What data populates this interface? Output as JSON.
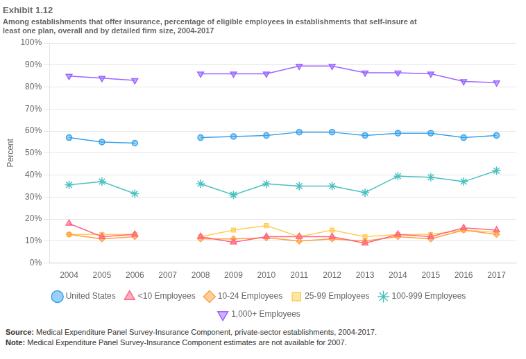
{
  "chart_data": {
    "type": "line",
    "title": "Exhibit 1.12",
    "subtitle": "Among establishments that offer insurance, percentage of eligible employees in establishments that self-insure at\nleast one plan, overall and by detailed firm size, 2004-2017",
    "y_label": "Percent",
    "annotations": [
      "Source: Medical Expenditure Panel Survey-Insurance Component, private-sector establishments, 2004-2017.",
      "Note: Medical Expenditure Panel Survey-Insurance Component estimates are not available for 2007."
    ],
    "x": [
      2004,
      2005,
      2006,
      2007,
      2008,
      2009,
      2010,
      2011,
      2012,
      2013,
      2014,
      2015,
      2016,
      2017
    ],
    "series": [
      {
        "name": "United States",
        "marker": "circle",
        "values": [
          57,
          55,
          54.5,
          null,
          57,
          57.5,
          58,
          59.5,
          59.5,
          58,
          59,
          59,
          57,
          58
        ]
      },
      {
        "name": "<10 Employees",
        "marker": "triangle-up",
        "values": [
          18,
          12,
          13,
          null,
          12,
          9.5,
          12,
          12,
          12,
          9,
          13,
          12,
          16,
          15
        ]
      },
      {
        "name": "10-24 Employees",
        "marker": "diamond",
        "values": [
          13,
          11,
          12,
          null,
          11,
          11,
          11.5,
          10,
          11,
          10,
          12,
          11,
          15,
          13
        ]
      },
      {
        "name": "25-99 Employees",
        "marker": "square",
        "values": [
          13,
          13,
          13,
          null,
          12,
          15,
          17,
          12,
          15,
          12,
          13,
          13,
          15,
          14
        ]
      },
      {
        "name": "100-999 Employees",
        "marker": "star",
        "values": [
          35.5,
          37,
          31.5,
          null,
          36,
          31,
          36,
          35,
          35,
          32,
          39.5,
          39,
          37,
          42
        ]
      },
      {
        "name": "1,000+ Employees",
        "marker": "triangle-down",
        "values": [
          85,
          84,
          83,
          null,
          86,
          86,
          86,
          89.5,
          89.5,
          86.5,
          86.5,
          86,
          82.5,
          82
        ]
      }
    ],
    "xlim": [
      2003.4,
      2017.6
    ],
    "xticks": [
      2004,
      2005,
      2006,
      2007,
      2008,
      2009,
      2010,
      2011,
      2012,
      2013,
      2014,
      2015,
      2016,
      2017
    ],
    "ylim": [
      0,
      100
    ],
    "yticks": [
      {
        "value": 0,
        "label": "0%"
      },
      {
        "value": 10,
        "label": "10%"
      },
      {
        "value": 20,
        "label": "20%"
      },
      {
        "value": 30,
        "label": "30%"
      },
      {
        "value": 40,
        "label": "40%"
      },
      {
        "value": 50,
        "label": "50%"
      },
      {
        "value": 60,
        "label": "60%"
      },
      {
        "value": 70,
        "label": "70%"
      },
      {
        "value": 80,
        "label": "80%"
      },
      {
        "value": 90,
        "label": "90%"
      },
      {
        "value": 100,
        "label": "100%"
      }
    ],
    "grid": "y",
    "legend": "bottom"
  }
}
